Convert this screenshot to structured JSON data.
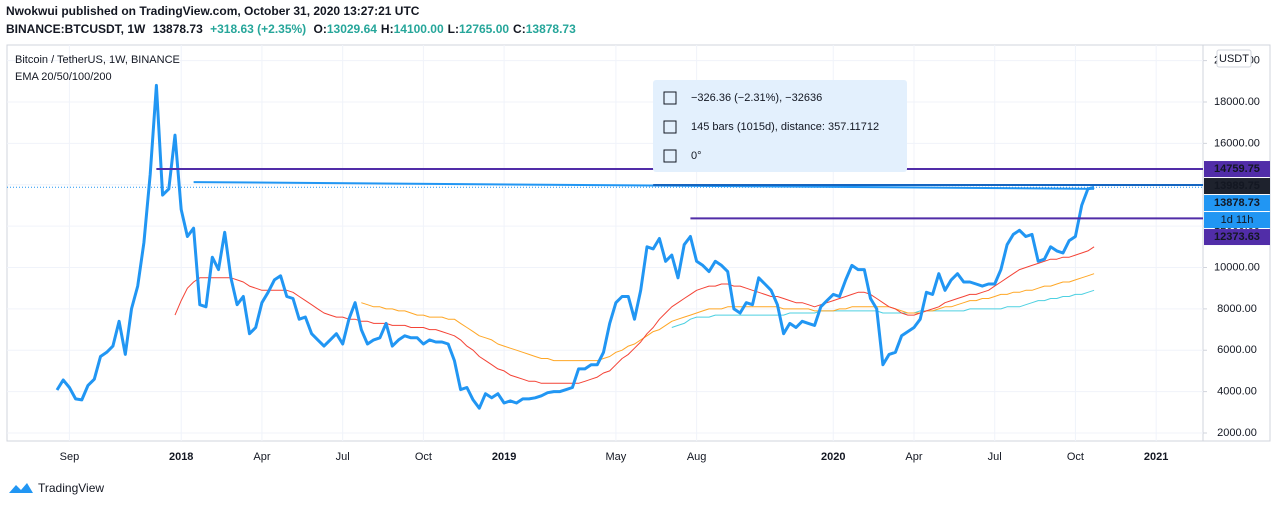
{
  "header": {
    "published": "Nwokwui published on TradingView.com, October 31, 2020 13:27:21 UTC",
    "symbol": "BINANCE:BTCUSDT, 1W",
    "price": "13878.73",
    "change": "+318.63 (+2.35%)",
    "ohlc": [
      {
        "key": "O:",
        "value": "13029.64"
      },
      {
        "key": "H:",
        "value": "14100.00"
      },
      {
        "key": "L:",
        "value": "12765.00"
      },
      {
        "key": "C:",
        "value": "13878.73"
      }
    ]
  },
  "chart_data": {
    "type": "line",
    "title": "Bitcoin / TetherUS, 1W, BINANCE",
    "indicator": "EMA 20/50/100/200",
    "currency": "USDT",
    "grid": true,
    "categories": [
      null,
      null,
      "Sep",
      null,
      null,
      null,
      null,
      null,
      null,
      null,
      null,
      null,
      null,
      null,
      null,
      null,
      null,
      null,
      null,
      null,
      "2018",
      null,
      null,
      null,
      null,
      null,
      null,
      null,
      null,
      null,
      null,
      null,
      null,
      "Apr",
      null,
      null,
      null,
      null,
      null,
      null,
      null,
      null,
      null,
      null,
      null,
      null,
      "Jul",
      null,
      null,
      null,
      null,
      null,
      null,
      null,
      null,
      null,
      null,
      null,
      null,
      "Oct",
      null,
      null,
      null,
      null,
      null,
      null,
      null,
      null,
      null,
      null,
      null,
      null,
      "2019",
      null,
      null,
      null,
      null,
      null,
      null,
      null,
      null,
      null,
      null,
      null,
      null,
      null,
      null,
      null,
      null,
      null,
      "May",
      null,
      null,
      null,
      null,
      null,
      null,
      null,
      null,
      null,
      null,
      null,
      null,
      "Aug",
      null,
      null,
      null,
      null,
      null,
      null,
      null,
      null,
      null,
      null,
      null,
      null,
      null,
      null,
      null,
      null,
      null,
      null,
      null,
      null,
      null,
      "2020",
      null,
      null,
      null,
      null,
      null,
      null,
      null,
      null,
      null,
      null,
      null,
      null,
      "Apr",
      null,
      null,
      null,
      null,
      null,
      null,
      null,
      null,
      null,
      null,
      null,
      null,
      "Jul",
      null,
      null,
      null,
      null,
      null,
      null,
      null,
      null,
      null,
      null,
      null,
      null,
      "Oct",
      null,
      null,
      null,
      null,
      null,
      null,
      null,
      null,
      null,
      null,
      null,
      null,
      "2021",
      null,
      null,
      null,
      null,
      null,
      null,
      null
    ],
    "series": [
      {
        "color": "#2196f3",
        "width": 3,
        "values": [
          4080,
          4560,
          4200,
          3650,
          3600,
          4300,
          4600,
          5700,
          5900,
          6200,
          7400,
          5800,
          8000,
          9100,
          11200,
          14500,
          18800,
          13500,
          13800,
          16400,
          12800,
          11500,
          11900,
          8200,
          8100,
          10500,
          9900,
          11700,
          9500,
          8200,
          8600,
          6800,
          7100,
          8300,
          8800,
          9400,
          9600,
          8600,
          8500,
          7500,
          7600,
          6800,
          6500,
          6200,
          6500,
          6800,
          6300,
          7500,
          8300,
          7000,
          6300,
          6500,
          6600,
          7300,
          6200,
          6500,
          6700,
          6600,
          6600,
          6300,
          6500,
          6400,
          6400,
          6300,
          5500,
          4100,
          4200,
          3600,
          3200,
          3900,
          3700,
          3900,
          3450,
          3550,
          3450,
          3650,
          3650,
          3700,
          3800,
          3950,
          4000,
          4000,
          4100,
          4200,
          5100,
          5100,
          5300,
          5300,
          5900,
          7300,
          8300,
          8600,
          8600,
          7500,
          8900,
          11000,
          10900,
          11400,
          10300,
          10600,
          9500,
          11100,
          11500,
          10300,
          10100,
          9800,
          10300,
          10100,
          9800,
          8000,
          7800,
          8300,
          8200,
          9500,
          9200,
          8900,
          8200,
          6800,
          7300,
          7100,
          7400,
          7300,
          7200,
          8100,
          8400,
          8700,
          8600,
          9400,
          10100,
          9900,
          9900,
          8500,
          8000,
          5300,
          5800,
          5900,
          6700,
          6900,
          7100,
          7500,
          8800,
          8700,
          9700,
          8900,
          9400,
          9700,
          9300,
          9300,
          9200,
          9100,
          9200,
          9200,
          9900,
          11100,
          11600,
          11800,
          11500,
          11600,
          10300,
          10400,
          11000,
          10800,
          10700,
          11300,
          11500,
          13000,
          13800,
          13878.73,
          null,
          null,
          null,
          null,
          null,
          null,
          null,
          null,
          null,
          null,
          null,
          null,
          null,
          null,
          null,
          null,
          null
        ]
      },
      {
        "color": "#f44336",
        "width": 1,
        "values": [
          null,
          null,
          null,
          null,
          null,
          null,
          null,
          null,
          null,
          null,
          null,
          null,
          null,
          null,
          null,
          null,
          null,
          null,
          null,
          7700,
          8400,
          9000,
          9300,
          9500,
          9500,
          9500,
          9500,
          9500,
          9500,
          9400,
          9300,
          9100,
          9000,
          8900,
          8900,
          8900,
          8900,
          8900,
          8800,
          8600,
          8400,
          8200,
          8000,
          7800,
          7700,
          7600,
          7600,
          7500,
          7500,
          7400,
          7400,
          7300,
          7300,
          7300,
          7200,
          7200,
          7200,
          7100,
          7100,
          7100,
          7000,
          7000,
          6900,
          6800,
          6700,
          6500,
          6200,
          6000,
          5700,
          5500,
          5300,
          5100,
          5000,
          4800,
          4700,
          4600,
          4500,
          4500,
          4400,
          4400,
          4400,
          4400,
          4400,
          4400,
          4400,
          4500,
          4600,
          4700,
          4900,
          5000,
          5300,
          5600,
          5800,
          6100,
          6400,
          6800,
          7100,
          7500,
          7800,
          8100,
          8300,
          8500,
          8700,
          8900,
          9000,
          9100,
          9100,
          9200,
          9200,
          9100,
          9100,
          9000,
          8900,
          8800,
          8700,
          8600,
          8600,
          8500,
          8400,
          8300,
          8300,
          8200,
          8100,
          8200,
          8300,
          8400,
          8500,
          8600,
          8700,
          8800,
          8800,
          8700,
          8500,
          8300,
          8100,
          8000,
          7800,
          7700,
          7700,
          7800,
          7900,
          8000,
          8100,
          8300,
          8400,
          8500,
          8600,
          8700,
          8700,
          8800,
          8900,
          9100,
          9300,
          9500,
          9700,
          9900,
          10000,
          10100,
          10200,
          10300,
          10400,
          10400,
          10500,
          10500,
          10600,
          10700,
          10800,
          11000,
          null,
          null,
          null,
          null,
          null,
          null,
          null,
          null,
          null,
          null,
          null,
          null,
          null,
          null,
          null,
          null,
          null
        ]
      },
      {
        "color": "#ffa726",
        "width": 1,
        "values": [
          null,
          null,
          null,
          null,
          null,
          null,
          null,
          null,
          null,
          null,
          null,
          null,
          null,
          null,
          null,
          null,
          null,
          null,
          null,
          null,
          null,
          null,
          null,
          null,
          null,
          null,
          null,
          null,
          null,
          null,
          null,
          null,
          null,
          null,
          null,
          null,
          null,
          null,
          null,
          null,
          null,
          null,
          null,
          null,
          null,
          null,
          null,
          null,
          null,
          8300,
          8200,
          8100,
          8100,
          8000,
          8000,
          7900,
          7900,
          7800,
          7700,
          7700,
          7600,
          7600,
          7600,
          7500,
          7500,
          7300,
          7100,
          6900,
          6700,
          6600,
          6500,
          6300,
          6200,
          6100,
          6000,
          5900,
          5800,
          5700,
          5600,
          5600,
          5500,
          5500,
          5500,
          5500,
          5500,
          5500,
          5500,
          5500,
          5600,
          5700,
          5900,
          6000,
          6200,
          6300,
          6500,
          6700,
          6900,
          7000,
          7200,
          7400,
          7500,
          7600,
          7700,
          7800,
          7900,
          8000,
          8000,
          8000,
          8100,
          8100,
          8100,
          8100,
          8100,
          8100,
          8100,
          8100,
          8100,
          8000,
          8000,
          8000,
          8000,
          8000,
          7900,
          7900,
          7900,
          7900,
          8000,
          8000,
          8100,
          8100,
          8100,
          8100,
          8100,
          8100,
          8100,
          8000,
          7900,
          7800,
          7800,
          7800,
          7900,
          7900,
          8000,
          8100,
          8100,
          8200,
          8300,
          8400,
          8400,
          8500,
          8500,
          8600,
          8700,
          8700,
          8800,
          8800,
          8900,
          8900,
          9000,
          9100,
          9100,
          9200,
          9300,
          9300,
          9400,
          9500,
          9600,
          9700,
          null,
          null,
          null,
          null,
          null,
          null,
          null,
          null,
          null,
          null,
          null,
          null,
          null,
          null,
          null,
          null,
          null
        ]
      },
      {
        "color": "#4dd0e1",
        "width": 1,
        "values": [
          null,
          null,
          null,
          null,
          null,
          null,
          null,
          null,
          null,
          null,
          null,
          null,
          null,
          null,
          null,
          null,
          null,
          null,
          null,
          null,
          null,
          null,
          null,
          null,
          null,
          null,
          null,
          null,
          null,
          null,
          null,
          null,
          null,
          null,
          null,
          null,
          null,
          null,
          null,
          null,
          null,
          null,
          null,
          null,
          null,
          null,
          null,
          null,
          null,
          null,
          null,
          null,
          null,
          null,
          null,
          null,
          null,
          null,
          null,
          null,
          null,
          null,
          null,
          null,
          null,
          null,
          null,
          null,
          null,
          null,
          null,
          null,
          null,
          null,
          null,
          null,
          null,
          null,
          null,
          null,
          null,
          null,
          null,
          null,
          null,
          null,
          null,
          null,
          null,
          null,
          null,
          null,
          null,
          null,
          null,
          null,
          null,
          null,
          null,
          7100,
          7200,
          7300,
          7500,
          7600,
          7600,
          7600,
          7700,
          7700,
          7700,
          7700,
          7700,
          7700,
          7700,
          7700,
          7700,
          7700,
          7700,
          7700,
          7800,
          7800,
          7800,
          7800,
          7800,
          7900,
          7900,
          7900,
          7900,
          7900,
          7900,
          7900,
          7900,
          7900,
          7900,
          7800,
          7800,
          7800,
          7800,
          7800,
          7800,
          7900,
          7900,
          7900,
          7900,
          7900,
          7900,
          7900,
          7900,
          8000,
          8000,
          8000,
          8000,
          8000,
          8000,
          8100,
          8100,
          8100,
          8200,
          8300,
          8400,
          8400,
          8500,
          8500,
          8600,
          8600,
          8700,
          8700,
          8800,
          8900,
          null,
          null,
          null,
          null,
          null,
          null,
          null,
          null,
          null,
          null,
          null,
          null,
          null,
          null,
          null,
          null,
          null
        ]
      }
    ],
    "ylim": [
      1613,
      20755
    ],
    "yticks": [
      {
        "value": 2000,
        "label": "2000.00"
      },
      {
        "value": 4000,
        "label": "4000.00"
      },
      {
        "value": 6000,
        "label": "6000.00"
      },
      {
        "value": 8000,
        "label": "8000.00"
      },
      {
        "value": 10000,
        "label": "10000.00"
      },
      {
        "value": 12000,
        "label": "12000.00"
      },
      {
        "value": 14000,
        "label": "14000.00"
      },
      {
        "value": 16000,
        "label": "16000.00"
      },
      {
        "value": 18000,
        "label": "18000.00"
      },
      {
        "value": 20000,
        "label": "20000.00"
      }
    ],
    "hlines": [
      {
        "value": 14759.75,
        "color": "#512da8",
        "from_bar": 16
      },
      {
        "value": 13989.75,
        "color": "#1e222d",
        "line_color": "#1565c0",
        "from_bar": 96
      },
      {
        "value": 13878.73,
        "color": "#2196f3",
        "dotted": true
      },
      {
        "value": 12373.63,
        "color": "#512da8",
        "from_bar": 102
      }
    ],
    "countdown": "1d 11h",
    "trend_line": [
      {
        "bar": 22,
        "value": 14128
      },
      {
        "bar": 167,
        "value": 13802
      }
    ],
    "measure": {
      "lines": [
        "−326.36 (−2.31%), −32636",
        "145 bars (1015d), distance: 357.11712",
        "0°"
      ]
    }
  },
  "footer": {
    "brand": "TradingView"
  }
}
